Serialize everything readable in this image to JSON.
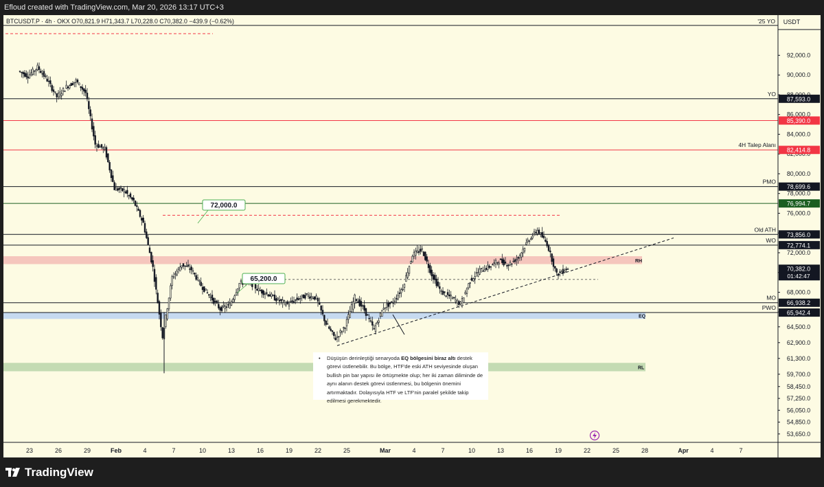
{
  "header": {
    "attribution": "Efloud created with TradingView.com, Mar 20, 2026 13:17 UTC+3"
  },
  "footer": {
    "brand": "TradingView",
    "logo_icon": "tradingview-logo-icon"
  },
  "chart_data": {
    "type": "candlestick",
    "symbol_line": "BTCUSDT.P · 4h · OKX  O70,821.9  H71,343.7  L70,228.0  C70,382.0  −439.9 (−0.62%)",
    "quote_currency": "USDT",
    "ylim": [
      52800,
      95300
    ],
    "y_ticks": [
      {
        "price": 92000,
        "label": "92,000.0"
      },
      {
        "price": 90000,
        "label": "90,000.0"
      },
      {
        "price": 88000,
        "label": "88,000.0"
      },
      {
        "price": 86000,
        "label": "86,000.0"
      },
      {
        "price": 84000,
        "label": "84,000.0"
      },
      {
        "price": 82000,
        "label": "82,000.0"
      },
      {
        "price": 80000,
        "label": "80,000.0"
      },
      {
        "price": 78000,
        "label": "78,000.0"
      },
      {
        "price": 76000,
        "label": "76,000.0"
      },
      {
        "price": 74000,
        "label": "74,000.0"
      },
      {
        "price": 72000,
        "label": "72,000.0"
      },
      {
        "price": 70000,
        "label": "70,000.0"
      },
      {
        "price": 68000,
        "label": "68,000.0"
      },
      {
        "price": 66000,
        "label": "66,000.0"
      },
      {
        "price": 64500,
        "label": "64,500.0"
      },
      {
        "price": 62900,
        "label": "62,900.0"
      },
      {
        "price": 61300,
        "label": "61,300.0"
      },
      {
        "price": 59700,
        "label": "59,700.0"
      },
      {
        "price": 58450,
        "label": "58,450.0"
      },
      {
        "price": 57250,
        "label": "57,250.0"
      },
      {
        "price": 56050,
        "label": "56,050.0"
      },
      {
        "price": 54850,
        "label": "54,850.0"
      },
      {
        "price": 53650,
        "label": "53,650.0"
      }
    ],
    "x_ticks": [
      {
        "date": "2026-01-23",
        "label": "23"
      },
      {
        "date": "2026-01-26",
        "label": "26"
      },
      {
        "date": "2026-01-29",
        "label": "29"
      },
      {
        "date": "2026-02-01",
        "label": "Feb"
      },
      {
        "date": "2026-02-04",
        "label": "4"
      },
      {
        "date": "2026-02-07",
        "label": "7"
      },
      {
        "date": "2026-02-10",
        "label": "10"
      },
      {
        "date": "2026-02-13",
        "label": "13"
      },
      {
        "date": "2026-02-16",
        "label": "16"
      },
      {
        "date": "2026-02-19",
        "label": "19"
      },
      {
        "date": "2026-02-22",
        "label": "22"
      },
      {
        "date": "2026-02-25",
        "label": "25"
      },
      {
        "date": "2026-03-01",
        "label": "Mar"
      },
      {
        "date": "2026-03-04",
        "label": "4"
      },
      {
        "date": "2026-03-07",
        "label": "7"
      },
      {
        "date": "2026-03-10",
        "label": "10"
      },
      {
        "date": "2026-03-13",
        "label": "13"
      },
      {
        "date": "2026-03-16",
        "label": "16"
      },
      {
        "date": "2026-03-19",
        "label": "19"
      },
      {
        "date": "2026-03-22",
        "label": "22"
      },
      {
        "date": "2026-03-25",
        "label": "25"
      },
      {
        "date": "2026-03-28",
        "label": "28"
      },
      {
        "date": "2026-04-01",
        "label": "Apr"
      },
      {
        "date": "2026-04-04",
        "label": "4"
      },
      {
        "date": "2026-04-07",
        "label": "7"
      }
    ],
    "price_path": [
      [
        "2026-01-22",
        90400
      ],
      [
        "2026-01-23",
        89900
      ],
      [
        "2026-01-24",
        90800
      ],
      [
        "2026-01-25",
        89500
      ],
      [
        "2026-01-26",
        87800
      ],
      [
        "2026-01-27",
        88800
      ],
      [
        "2026-01-28",
        89400
      ],
      [
        "2026-01-29",
        88200
      ],
      [
        "2026-01-30",
        83000
      ],
      [
        "2026-01-31",
        82500
      ],
      [
        "2026-02-01",
        78500
      ],
      [
        "2026-02-02",
        78300
      ],
      [
        "2026-02-03",
        77200
      ],
      [
        "2026-02-04",
        75000
      ],
      [
        "2026-02-05",
        70500
      ],
      [
        "2026-02-06",
        63500
      ],
      [
        "2026-02-07",
        69500
      ],
      [
        "2026-02-08",
        70800
      ],
      [
        "2026-02-09",
        70300
      ],
      [
        "2026-02-10",
        68700
      ],
      [
        "2026-02-11",
        67500
      ],
      [
        "2026-02-12",
        66300
      ],
      [
        "2026-02-13",
        66700
      ],
      [
        "2026-02-14",
        68900
      ],
      [
        "2026-02-15",
        69100
      ],
      [
        "2026-02-16",
        68200
      ],
      [
        "2026-02-17",
        67800
      ],
      [
        "2026-02-18",
        67200
      ],
      [
        "2026-02-19",
        66800
      ],
      [
        "2026-02-20",
        67300
      ],
      [
        "2026-02-21",
        67700
      ],
      [
        "2026-02-22",
        67400
      ],
      [
        "2026-02-23",
        64800
      ],
      [
        "2026-02-24",
        63300
      ],
      [
        "2026-02-25",
        64600
      ],
      [
        "2026-02-26",
        67500
      ],
      [
        "2026-02-27",
        66200
      ],
      [
        "2026-02-28",
        64200
      ],
      [
        "2026-03-01",
        66500
      ],
      [
        "2026-03-02",
        67000
      ],
      [
        "2026-03-03",
        68500
      ],
      [
        "2026-03-04",
        71800
      ],
      [
        "2026-03-05",
        72300
      ],
      [
        "2026-03-06",
        69800
      ],
      [
        "2026-03-07",
        68000
      ],
      [
        "2026-03-08",
        67500
      ],
      [
        "2026-03-09",
        66800
      ],
      [
        "2026-03-10",
        69200
      ],
      [
        "2026-03-11",
        70200
      ],
      [
        "2026-03-12",
        70600
      ],
      [
        "2026-03-13",
        71200
      ],
      [
        "2026-03-14",
        70800
      ],
      [
        "2026-03-15",
        71500
      ],
      [
        "2026-03-16",
        73200
      ],
      [
        "2026-03-17",
        74300
      ],
      [
        "2026-03-18",
        72900
      ],
      [
        "2026-03-19",
        69800
      ],
      [
        "2026-03-20",
        70382
      ]
    ],
    "price_label": {
      "price": 70382.0,
      "label": "70,382.0",
      "countdown": "01:42:47"
    },
    "levels": [
      {
        "price": 87593.0,
        "label": "87,593.0",
        "name": "YO",
        "color": "#131722"
      },
      {
        "price": 85390.0,
        "label": "85,390.0",
        "name": "",
        "color": "#f23645"
      },
      {
        "price": 82414.8,
        "label": "82,414.8",
        "name": "4H Talep Alanı",
        "color": "#f23645"
      },
      {
        "price": 78699.6,
        "label": "78,699.6",
        "name": "PMO",
        "color": "#131722"
      },
      {
        "price": 76994.7,
        "label": "76,994.7",
        "name": "",
        "color": "#1b5e20"
      },
      {
        "price": 73856.0,
        "label": "73,856.0",
        "name": "Old ATH",
        "color": "#131722"
      },
      {
        "price": 72774.1,
        "label": "72,774.1",
        "name": "WO",
        "color": "#131722"
      },
      {
        "price": 66938.2,
        "label": "66,938.2",
        "name": "MO",
        "color": "#131722"
      },
      {
        "price": 65942.4,
        "label": "65,942.4",
        "name": "PWO",
        "color": "#131722"
      }
    ],
    "zones": [
      {
        "name": "RH",
        "color": "#f5c6bd"
      },
      {
        "name": "EQ",
        "color": "#c6daf0"
      },
      {
        "name": "RL",
        "color": "#c4dbb3"
      }
    ],
    "callouts": [
      {
        "price": 72000.0,
        "label": "72,000.0"
      },
      {
        "price": 65200.0,
        "label": "65,200.0"
      }
    ],
    "year_open_label": "'25 YO",
    "annotation": {
      "text_before": "Düşüşün derinleştiği senaryoda ",
      "text_bold": "EQ bölgesini biraz altı",
      "text_after": " destek görevi üstlenebilir. Bu bölge, HTF'de eski ATH seviyesinde oluşan bullish pin bar yapısı ile örtüşmekte olup; her iki zaman diliminde de aynı alanın destek görevi üstlenmesi, bu bölgenin önemini artırmaktadır. Dolayısıyla HTF ve LTF'nin paralel şekilde takip edilmesi gerekmektedir."
    },
    "colors": {
      "background": "#fdfbe3",
      "up": "#089981",
      "down": "#f23645",
      "candle": "#131722",
      "price_tag": "#131722"
    }
  }
}
